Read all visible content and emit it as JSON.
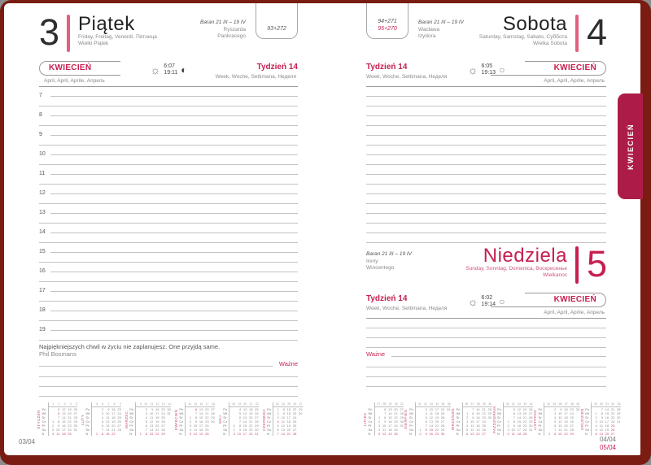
{
  "tab_label": "KWIECIEŃ",
  "left": {
    "day_number": "3",
    "day_name": "Piątek",
    "day_langs": "Friday, Freitag, Venerdì, Пятница",
    "day_extra": "Wielki Piątek",
    "zodiac": "Baran 21 III – 19 IV",
    "names": [
      "Ryszarda",
      "Pankracego"
    ],
    "day_count": "93+272",
    "month_label": "KWIECIEŃ",
    "month_langs": "April, April, Aprile, Апрель",
    "week_label": "Tydzień 14",
    "week_langs": "Week, Woche, Settimana, Неделя",
    "sunrise": "6:07",
    "sunset": "19:11",
    "hours": [
      "7",
      "8",
      "9",
      "10",
      "11",
      "12",
      "13",
      "14",
      "15",
      "16",
      "17",
      "18",
      "19"
    ],
    "quote": "Najpiękniejszych chwil w życiu nie zaplanujesz. One przyjdą same.",
    "quote_author": "Phil Bosmans",
    "important_label": "Ważne",
    "footer": "03/04"
  },
  "right": {
    "sat": {
      "day_number": "4",
      "day_name": "Sobota",
      "day_langs": "Saturday, Samstag, Sabato, Суббота",
      "day_extra": "Wielka Sobota",
      "zodiac": "Baran 21 III – 19 IV",
      "names": [
        "Wacława",
        "Izydora"
      ],
      "counts": [
        "94+271",
        "95+270"
      ],
      "month_label": "KWIECIEŃ",
      "month_langs": "April, April, Aprile, Апрель",
      "week_label": "Tydzień 14",
      "week_langs": "Week, Woche, Settimana, Неделя",
      "sunrise": "6:05",
      "sunset": "19:13"
    },
    "sun": {
      "day_number": "5",
      "day_name": "Niedziela",
      "day_langs": "Sunday, Sonntag, Domenica, Воскресенье",
      "day_extra": "Wielkanoc",
      "zodiac": "Baran 21 III – 19 IV",
      "names": [
        "Ireny",
        "Wincentego"
      ],
      "month_label": "KWIECIEŃ",
      "month_langs": "April, April, Aprile, Апрель",
      "week_label": "Tydzień 14",
      "week_langs": "Week, Woche, Settimana, Неделя",
      "sunrise": "6:02",
      "sunset": "19:14",
      "important_label": "Ważne"
    },
    "footer_top": "04/04",
    "footer_bottom": "05/04"
  },
  "day_labels": [
    "Pn",
    "Wt",
    "Śr",
    "Cz",
    "Pt",
    "So",
    "N"
  ],
  "calendars": {
    "left": [
      {
        "name": "STYCZEŃ",
        "weeks": [
          1,
          2,
          3,
          4,
          5
        ],
        "red": [
          1,
          4,
          6,
          11,
          18,
          25
        ],
        "rows": [
          [
            null,
            5,
            12,
            19,
            26
          ],
          [
            null,
            6,
            13,
            20,
            27
          ],
          [
            null,
            7,
            14,
            21,
            28
          ],
          [
            1,
            8,
            15,
            22,
            29
          ],
          [
            2,
            9,
            16,
            23,
            30
          ],
          [
            3,
            10,
            17,
            24,
            31
          ],
          [
            4,
            11,
            18,
            25,
            null
          ]
        ]
      },
      {
        "name": "LUTY",
        "weeks": [
          5,
          6,
          7,
          8,
          9
        ],
        "red": [
          1,
          8,
          15,
          22
        ],
        "rows": [
          [
            null,
            2,
            9,
            16,
            23
          ],
          [
            null,
            3,
            10,
            17,
            24
          ],
          [
            null,
            4,
            11,
            18,
            25
          ],
          [
            null,
            5,
            12,
            19,
            26
          ],
          [
            null,
            6,
            13,
            20,
            27
          ],
          [
            null,
            7,
            14,
            21,
            28
          ],
          [
            1,
            8,
            15,
            22,
            null
          ]
        ]
      },
      {
        "name": "MARZEC",
        "weeks": [
          9,
          10,
          11,
          12,
          13,
          14
        ],
        "red": [
          1,
          8,
          15,
          22,
          29
        ],
        "rows": [
          [
            null,
            2,
            9,
            16,
            23,
            30
          ],
          [
            null,
            3,
            10,
            17,
            24,
            31
          ],
          [
            null,
            4,
            11,
            18,
            25,
            null
          ],
          [
            null,
            5,
            12,
            19,
            26,
            null
          ],
          [
            null,
            6,
            13,
            20,
            27,
            null
          ],
          [
            null,
            7,
            14,
            21,
            28,
            null
          ],
          [
            1,
            8,
            15,
            22,
            29,
            null
          ]
        ]
      },
      {
        "name": "KWIECIEŃ",
        "weeks": [
          14,
          15,
          16,
          17,
          18
        ],
        "red": [
          5,
          6,
          12,
          19,
          26
        ],
        "rows": [
          [
            null,
            6,
            13,
            20,
            27
          ],
          [
            null,
            7,
            14,
            21,
            28
          ],
          [
            1,
            8,
            15,
            22,
            29
          ],
          [
            2,
            9,
            16,
            23,
            30
          ],
          [
            3,
            10,
            17,
            24,
            null
          ],
          [
            4,
            11,
            18,
            25,
            null
          ],
          [
            5,
            12,
            19,
            26,
            null
          ]
        ]
      },
      {
        "name": "MAJ",
        "weeks": [
          18,
          19,
          20,
          21,
          22
        ],
        "red": [
          1,
          3,
          10,
          17,
          24,
          31
        ],
        "rows": [
          [
            null,
            4,
            11,
            18,
            25
          ],
          [
            null,
            5,
            12,
            19,
            26
          ],
          [
            null,
            6,
            13,
            20,
            27
          ],
          [
            null,
            7,
            14,
            21,
            28
          ],
          [
            1,
            8,
            15,
            22,
            29
          ],
          [
            2,
            9,
            16,
            23,
            30
          ],
          [
            3,
            10,
            17,
            24,
            31
          ]
        ]
      },
      {
        "name": "CZERWIEC",
        "weeks": [
          23,
          24,
          25,
          26,
          27
        ],
        "red": [
          4,
          7,
          14,
          21,
          28
        ],
        "rows": [
          [
            1,
            8,
            15,
            22,
            29
          ],
          [
            2,
            9,
            16,
            23,
            30
          ],
          [
            3,
            10,
            17,
            24,
            null
          ],
          [
            4,
            11,
            18,
            25,
            null
          ],
          [
            5,
            12,
            19,
            26,
            null
          ],
          [
            6,
            13,
            20,
            27,
            null
          ],
          [
            7,
            14,
            21,
            28,
            null
          ]
        ]
      }
    ],
    "right": [
      {
        "name": "LIPIEC",
        "weeks": [
          27,
          28,
          29,
          30,
          31
        ],
        "red": [
          5,
          12,
          19,
          26
        ],
        "rows": [
          [
            null,
            6,
            13,
            20,
            27
          ],
          [
            null,
            7,
            14,
            21,
            28
          ],
          [
            1,
            8,
            15,
            22,
            29
          ],
          [
            2,
            9,
            16,
            23,
            30
          ],
          [
            3,
            10,
            17,
            24,
            31
          ],
          [
            4,
            11,
            18,
            25,
            null
          ],
          [
            5,
            12,
            19,
            26,
            null
          ]
        ]
      },
      {
        "name": "SIERPIEŃ",
        "weeks": [
          31,
          32,
          33,
          34,
          35,
          36
        ],
        "red": [
          2,
          9,
          15,
          16,
          23,
          30
        ],
        "rows": [
          [
            null,
            3,
            10,
            17,
            24,
            31
          ],
          [
            null,
            4,
            11,
            18,
            25,
            null
          ],
          [
            null,
            5,
            12,
            19,
            26,
            null
          ],
          [
            null,
            6,
            13,
            20,
            27,
            null
          ],
          [
            null,
            7,
            14,
            21,
            28,
            null
          ],
          [
            1,
            8,
            15,
            22,
            29,
            null
          ],
          [
            2,
            9,
            16,
            23,
            30,
            null
          ]
        ]
      },
      {
        "name": "WRZESIEŃ",
        "weeks": [
          36,
          37,
          38,
          39,
          40
        ],
        "red": [
          6,
          13,
          20,
          27
        ],
        "rows": [
          [
            null,
            7,
            14,
            21,
            28
          ],
          [
            1,
            8,
            15,
            22,
            29
          ],
          [
            2,
            9,
            16,
            23,
            30
          ],
          [
            3,
            10,
            17,
            24,
            null
          ],
          [
            4,
            11,
            18,
            25,
            null
          ],
          [
            5,
            12,
            19,
            26,
            null
          ],
          [
            6,
            13,
            20,
            27,
            null
          ]
        ]
      },
      {
        "name": "PAŹDZIERNIK",
        "weeks": [
          40,
          41,
          42,
          43,
          44
        ],
        "red": [
          4,
          11,
          18,
          25
        ],
        "rows": [
          [
            null,
            5,
            12,
            19,
            26
          ],
          [
            null,
            6,
            13,
            20,
            27
          ],
          [
            null,
            7,
            14,
            21,
            28
          ],
          [
            1,
            8,
            15,
            22,
            29
          ],
          [
            2,
            9,
            16,
            23,
            30
          ],
          [
            3,
            10,
            17,
            24,
            31
          ],
          [
            4,
            11,
            18,
            25,
            null
          ]
        ]
      },
      {
        "name": "LISTOPAD",
        "weeks": [
          44,
          45,
          46,
          47,
          48,
          49
        ],
        "red": [
          1,
          8,
          11,
          15,
          22,
          29
        ],
        "rows": [
          [
            null,
            2,
            9,
            16,
            23,
            30
          ],
          [
            null,
            3,
            10,
            17,
            24,
            null
          ],
          [
            null,
            4,
            11,
            18,
            25,
            null
          ],
          [
            null,
            5,
            12,
            19,
            26,
            null
          ],
          [
            null,
            6,
            13,
            20,
            27,
            null
          ],
          [
            null,
            7,
            14,
            21,
            28,
            null
          ],
          [
            1,
            8,
            15,
            22,
            29,
            null
          ]
        ]
      },
      {
        "name": "GRUDZIEŃ",
        "weeks": [
          49,
          50,
          51,
          52,
          53
        ],
        "red": [
          6,
          13,
          20,
          25,
          26,
          27
        ],
        "rows": [
          [
            null,
            7,
            14,
            21,
            28
          ],
          [
            1,
            8,
            15,
            22,
            29
          ],
          [
            2,
            9,
            16,
            23,
            30
          ],
          [
            3,
            10,
            17,
            24,
            31
          ],
          [
            4,
            11,
            18,
            25,
            null
          ],
          [
            5,
            12,
            19,
            26,
            null
          ],
          [
            6,
            13,
            20,
            27,
            null
          ]
        ]
      }
    ]
  },
  "colors": {
    "frame": "#7a1c12",
    "tab": "#ad1c48",
    "accent": "#c72050",
    "day_bar": "#e0607e",
    "rule": "#c3c3c3"
  }
}
